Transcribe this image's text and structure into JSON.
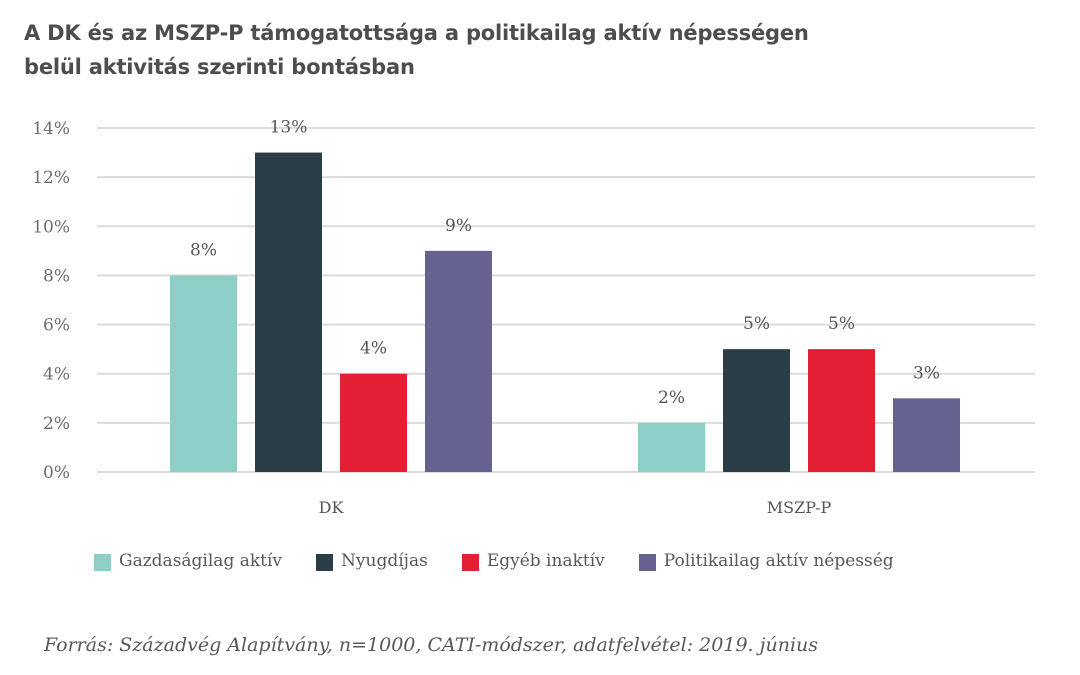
{
  "title": {
    "line1": "A DK és az MSZP-P támogatottsága a politikailag aktív népességen",
    "line2": "belül aktivitás szerinti bontásban"
  },
  "chart_data": {
    "type": "bar",
    "title": "A DK és az MSZP-P támogatottsága a politikailag aktív népességen belül aktivitás szerinti bontásban",
    "xlabel": "",
    "ylabel": "",
    "categories": [
      "DK",
      "MSZP-P"
    ],
    "series": [
      {
        "name": "Gazdaságilag aktív",
        "color": "#8dcfc6",
        "values": [
          8,
          2
        ],
        "labels": [
          "8%",
          "2%"
        ]
      },
      {
        "name": "Nyugdíjas",
        "color": "#2b3d47",
        "values": [
          13,
          5
        ],
        "labels": [
          "13%",
          "5%"
        ]
      },
      {
        "name": "Egyéb inaktív",
        "color": "#e31f33",
        "values": [
          4,
          5
        ],
        "labels": [
          "4%",
          "5%"
        ]
      },
      {
        "name": "Politikailag aktív népesség",
        "color": "#66628f",
        "values": [
          9,
          3
        ],
        "labels": [
          "9%",
          "3%"
        ]
      }
    ],
    "ylim": [
      0,
      14
    ],
    "yticks": [
      0,
      2,
      4,
      6,
      8,
      10,
      12,
      14
    ],
    "ytick_labels": [
      "0%",
      "2%",
      "4%",
      "6%",
      "8%",
      "10%",
      "12%",
      "14%"
    ],
    "grid": true,
    "legend_position": "bottom"
  },
  "source": "Forrás: Századvég Alapítvány, n=1000, CATI-módszer, adatfelvétel: 2019. június"
}
